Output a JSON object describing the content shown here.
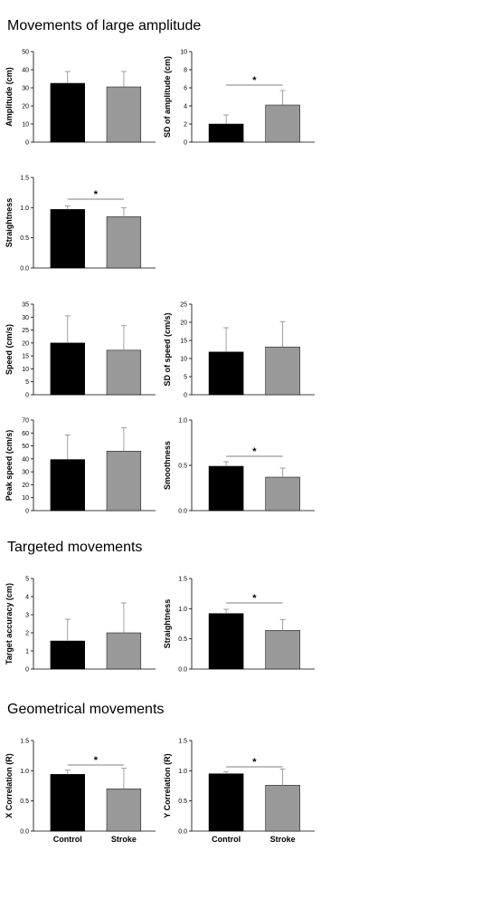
{
  "sections": [
    {
      "title": "Movements of large amplitude"
    },
    {
      "title": "Targeted movements"
    },
    {
      "title": "Geometrical movements"
    }
  ],
  "colors": {
    "control": "#000000",
    "stroke": "#999999",
    "axis": "#000000"
  },
  "chart_data": [
    {
      "type": "bar",
      "categories": [
        "Control",
        "Stroke"
      ],
      "show_xlabels": false,
      "ylabel": "Amplitude (cm)",
      "ylim": [
        0,
        50
      ],
      "yticks": [
        "0",
        "10",
        "20",
        "30",
        "40",
        "50"
      ],
      "values": [
        32.5,
        30.5
      ],
      "errors": [
        6.5,
        8.5
      ],
      "significance": ""
    },
    {
      "type": "bar",
      "categories": [
        "Control",
        "Stroke"
      ],
      "show_xlabels": false,
      "ylabel": "SD of amplitude (cm)",
      "ylim": [
        0,
        10
      ],
      "yticks": [
        "0",
        "2",
        "4",
        "6",
        "8",
        "10"
      ],
      "values": [
        2.0,
        4.1
      ],
      "errors": [
        1.0,
        1.6
      ],
      "significance": "*"
    },
    {
      "type": "bar",
      "categories": [
        "Control",
        "Stroke"
      ],
      "show_xlabels": false,
      "ylabel": "Straightness",
      "ylim": [
        0,
        1.5
      ],
      "yticks": [
        "0.0",
        "0.5",
        "1.0",
        "1.5"
      ],
      "values": [
        0.97,
        0.85
      ],
      "errors": [
        0.06,
        0.15
      ],
      "significance": "*"
    },
    {
      "type": "bar",
      "categories": [
        "Control",
        "Stroke"
      ],
      "show_xlabels": false,
      "ylabel": "Speed (cm/s)",
      "ylim": [
        0,
        35
      ],
      "yticks": [
        "0",
        "5",
        "10",
        "15",
        "20",
        "25",
        "30",
        "35"
      ],
      "values": [
        20.0,
        17.2
      ],
      "errors": [
        10.5,
        9.5
      ],
      "significance": ""
    },
    {
      "type": "bar",
      "categories": [
        "Control",
        "Stroke"
      ],
      "show_xlabels": false,
      "ylabel": "SD of speed (cm/s)",
      "ylim": [
        0,
        25
      ],
      "yticks": [
        "0",
        "5",
        "10",
        "15",
        "20",
        "25"
      ],
      "values": [
        11.8,
        13.2
      ],
      "errors": [
        6.7,
        7.0
      ],
      "significance": ""
    },
    {
      "type": "bar",
      "categories": [
        "Control",
        "Stroke"
      ],
      "show_xlabels": false,
      "ylabel": "Peak speed (cm/s)",
      "ylim": [
        0,
        70
      ],
      "yticks": [
        "0",
        "10",
        "20",
        "30",
        "40",
        "50",
        "60",
        "70"
      ],
      "values": [
        39.5,
        46.0
      ],
      "errors": [
        19.0,
        18.0
      ],
      "significance": ""
    },
    {
      "type": "bar",
      "categories": [
        "Control",
        "Stroke"
      ],
      "show_xlabels": false,
      "ylabel": "Smoothness",
      "ylim": [
        0,
        1.0
      ],
      "yticks": [
        "0.0",
        "0.5",
        "1.0"
      ],
      "values": [
        0.49,
        0.37
      ],
      "errors": [
        0.05,
        0.1
      ],
      "significance": "*"
    },
    {
      "type": "bar",
      "categories": [
        "Control",
        "Stroke"
      ],
      "show_xlabels": false,
      "ylabel": "Target accuracy (cm)",
      "ylim": [
        0,
        5
      ],
      "yticks": [
        "0",
        "1",
        "2",
        "3",
        "4",
        "5"
      ],
      "values": [
        1.55,
        2.0
      ],
      "errors": [
        1.2,
        1.65
      ],
      "significance": ""
    },
    {
      "type": "bar",
      "categories": [
        "Control",
        "Stroke"
      ],
      "show_xlabels": false,
      "ylabel": "Straightness",
      "ylim": [
        0,
        1.5
      ],
      "yticks": [
        "0.0",
        "0.5",
        "1.0",
        "1.5"
      ],
      "values": [
        0.92,
        0.64
      ],
      "errors": [
        0.07,
        0.18
      ],
      "significance": "*"
    },
    {
      "type": "bar",
      "categories": [
        "Control",
        "Stroke"
      ],
      "show_xlabels": true,
      "ylabel": "X Correlation (R)",
      "ylim": [
        0,
        1.5
      ],
      "yticks": [
        "0.0",
        "0.5",
        "1.0",
        "1.5"
      ],
      "values": [
        0.94,
        0.7
      ],
      "errors": [
        0.07,
        0.34
      ],
      "significance": "*"
    },
    {
      "type": "bar",
      "categories": [
        "Control",
        "Stroke"
      ],
      "show_xlabels": true,
      "ylabel": "Y Correlation (R)",
      "ylim": [
        0,
        1.5
      ],
      "yticks": [
        "0.0",
        "0.5",
        "1.0",
        "1.5"
      ],
      "values": [
        0.95,
        0.76
      ],
      "errors": [
        0.03,
        0.27
      ],
      "significance": "*"
    }
  ]
}
